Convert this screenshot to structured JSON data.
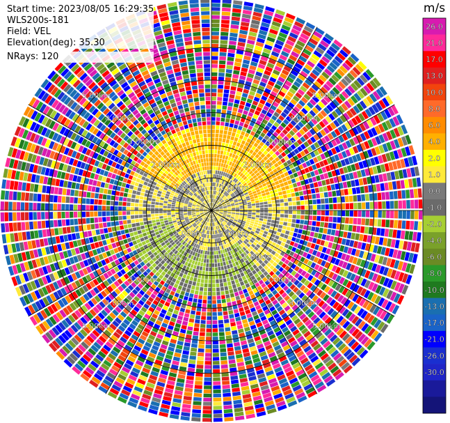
{
  "meta": {
    "start_time": "Start time: 2023/08/05 16:29:35",
    "instrument": "WLS200s-181",
    "field": "Field: VEL",
    "elevation": "Elevation(deg): 35.30",
    "nrays": "NRays: 120"
  },
  "chart_data": {
    "type": "heatmap",
    "projection": "polar-ppi",
    "field": "VEL",
    "units": "m/s",
    "rays": 120,
    "max_range_km": 6.5,
    "range_rings_km": [
      1.0,
      2.0,
      3.0,
      4.0,
      5.0
    ],
    "range_ring_labels": [
      "1.00km",
      "2.00km",
      "3.00km",
      "4.00km",
      "5.00km"
    ],
    "ring_label_bearings_deg": [
      45,
      135,
      225,
      315
    ],
    "spokes_deg": [
      0,
      30,
      60,
      90,
      120,
      150,
      180,
      210,
      240,
      270,
      300,
      330
    ],
    "regions": [
      {
        "description": "near-zero velocity core",
        "range_km": [
          0.0,
          1.4
        ],
        "dominant_value_ms": 0.0
      },
      {
        "description": "positive (receding) band north and east",
        "range_km": [
          1.3,
          2.6
        ],
        "bearing_deg": [
          300,
          80
        ],
        "dominant_value_ms": 2.0
      },
      {
        "description": "negative (approaching) band south and west",
        "range_km": [
          1.3,
          2.6
        ],
        "bearing_deg": [
          140,
          260
        ],
        "dominant_value_ms": -2.0
      },
      {
        "description": "noise / random velocities",
        "range_km": [
          2.6,
          6.5
        ],
        "dominant_value_ms": null
      }
    ],
    "colorbar": {
      "title": "m/s",
      "colors": [
        "#d81bb0",
        "#ff2a9a",
        "#ff0000",
        "#e02020",
        "#f2440d",
        "#ff6a2a",
        "#ff8c00",
        "#ffb000",
        "#ffff00",
        "#ffea3a",
        "#7a7a7a",
        "#6b6b6b",
        "#a6cf33",
        "#7aa12a",
        "#6b8b24",
        "#2a9a2a",
        "#1f7a1f",
        "#1a6fb0",
        "#1a63c8",
        "#0000ff",
        "#1a2fd0",
        "#1f25c8",
        "#1a1a9a",
        "#141478"
      ],
      "boundaries": [
        26.0,
        21.0,
        17.0,
        13.0,
        10.0,
        8.0,
        6.0,
        4.0,
        2.0,
        1.0,
        0.0,
        -1.0,
        -2.0,
        -4.0,
        -6.0,
        -8.0,
        -10.0,
        -13.0,
        -17.0,
        -21.0,
        -26.0,
        -30.0
      ],
      "tick_labels": [
        "26.0",
        "21.0",
        "17.0",
        "13.0",
        "10.0",
        "8.0",
        "6.0",
        "4.0",
        "2.0",
        "1.0",
        "0.0",
        "-1.0",
        "-2.0",
        "-4.0",
        "-6.0",
        "-8.0",
        "-10.0",
        "-13.0",
        "-17.0",
        "-21.0",
        "-26.0",
        "-30.0"
      ]
    }
  }
}
